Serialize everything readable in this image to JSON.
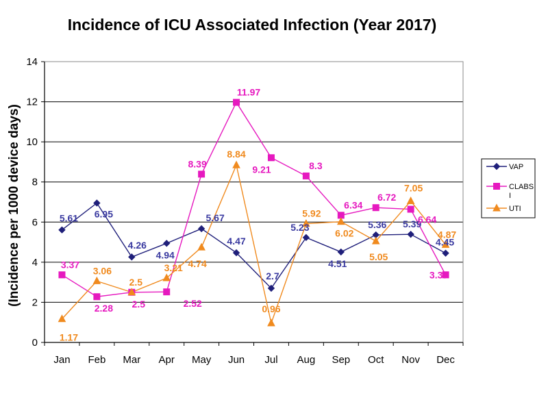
{
  "chart_data": {
    "type": "line",
    "title": "Incidence of ICU Associated Infection (Year 2017)",
    "xlabel": "",
    "ylabel": "(Incidence per 1000 device days)",
    "categories": [
      "Jan",
      "Feb",
      "Mar",
      "Apr",
      "May",
      "Jun",
      "Jul",
      "Aug",
      "Sep",
      "Oct",
      "Nov",
      "Dec"
    ],
    "ylim": [
      0,
      14
    ],
    "yticks": [
      "0",
      "2",
      "4",
      "6",
      "8",
      "10",
      "12",
      "14"
    ],
    "grid": true,
    "legend": "right",
    "series": [
      {
        "name": "VAP",
        "color": "#1f1f7a",
        "marker": "diamond",
        "values": [
          5.61,
          6.95,
          4.26,
          4.94,
          5.67,
          4.47,
          2.7,
          5.23,
          4.51,
          5.36,
          5.39,
          4.45
        ],
        "labels": [
          "5.61",
          "6.95",
          "4.26",
          "4.94",
          "5.67",
          "4.47",
          "2.7",
          "5.23",
          "4.51",
          "5.36",
          "5.39",
          "4.45"
        ]
      },
      {
        "name": "CLABSI",
        "legend_label": [
          "CLABS",
          "I"
        ],
        "color": "#e619bf",
        "marker": "square",
        "values": [
          3.37,
          2.28,
          2.5,
          2.52,
          8.39,
          11.97,
          9.21,
          8.3,
          6.34,
          6.72,
          6.64,
          3.37
        ],
        "labels": [
          "3.37",
          "2.28",
          "2.5",
          "2.52",
          "8.39",
          "11.97",
          "9.21",
          "8.3",
          "6.34",
          "6.72",
          "6.64",
          "3.37"
        ]
      },
      {
        "name": "UTI",
        "color": "#f08a1e",
        "marker": "triangle",
        "values": [
          1.17,
          3.06,
          2.5,
          3.21,
          4.74,
          8.84,
          0.96,
          5.92,
          6.02,
          5.05,
          7.05,
          4.87
        ],
        "labels": [
          "1.17",
          "3.06",
          "2.5",
          "3.21",
          "4.74",
          "8.84",
          "0.96",
          "5.92",
          "6.02",
          "5.05",
          "7.05",
          "4.87"
        ]
      }
    ]
  }
}
